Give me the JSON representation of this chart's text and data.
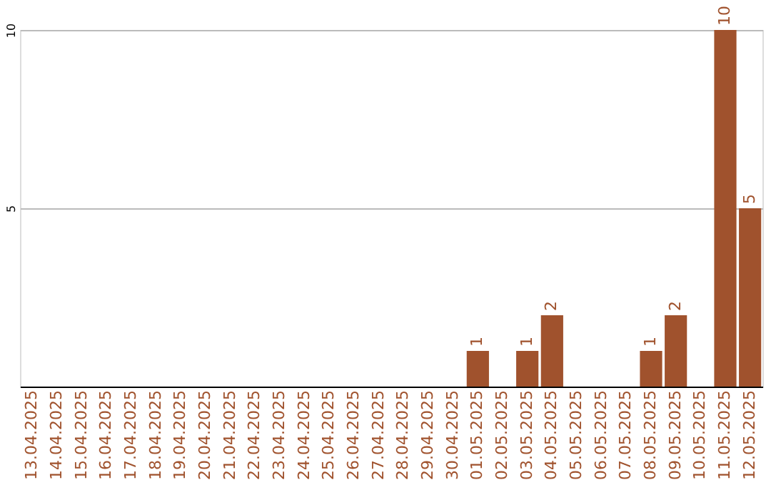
{
  "chart_data": {
    "type": "bar",
    "categories": [
      "13.04.2025",
      "14.04.2025",
      "15.04.2025",
      "16.04.2025",
      "17.04.2025",
      "18.04.2025",
      "19.04.2025",
      "20.04.2025",
      "21.04.2025",
      "22.04.2025",
      "23.04.2025",
      "24.04.2025",
      "25.04.2025",
      "26.04.2025",
      "27.04.2025",
      "28.04.2025",
      "29.04.2025",
      "30.04.2025",
      "01.05.2025",
      "02.05.2025",
      "03.05.2025",
      "04.05.2025",
      "05.05.2025",
      "06.05.2025",
      "07.05.2025",
      "08.05.2025",
      "09.05.2025",
      "10.05.2025",
      "11.05.2025",
      "12.05.2025"
    ],
    "values": [
      null,
      null,
      null,
      null,
      null,
      null,
      null,
      null,
      null,
      null,
      null,
      null,
      null,
      null,
      null,
      null,
      null,
      null,
      1,
      null,
      1,
      2,
      null,
      null,
      null,
      1,
      2,
      null,
      10,
      5
    ],
    "color": "#a0522d",
    "ylim": [
      0,
      10
    ],
    "yticks": [
      5,
      10
    ],
    "grid": "y",
    "data_labels": true
  }
}
